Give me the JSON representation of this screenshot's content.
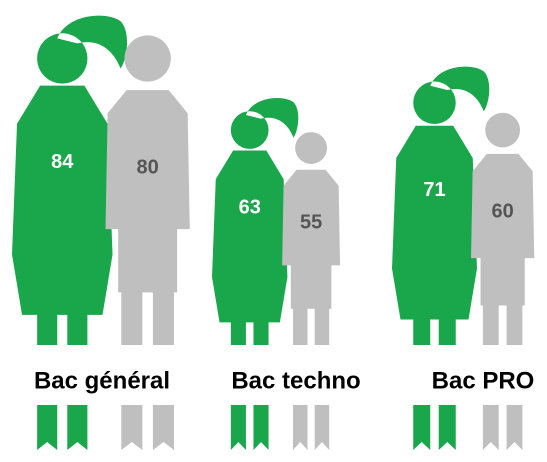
{
  "chart_data": {
    "type": "pictogram",
    "categories": [
      "Bac général",
      "Bac techno",
      "Bac PRO"
    ],
    "series": [
      {
        "color": "#1aa64b",
        "values": [
          84,
          63,
          71
        ]
      },
      {
        "color": "#bfbfbf",
        "values": [
          80,
          55,
          60
        ]
      }
    ]
  }
}
